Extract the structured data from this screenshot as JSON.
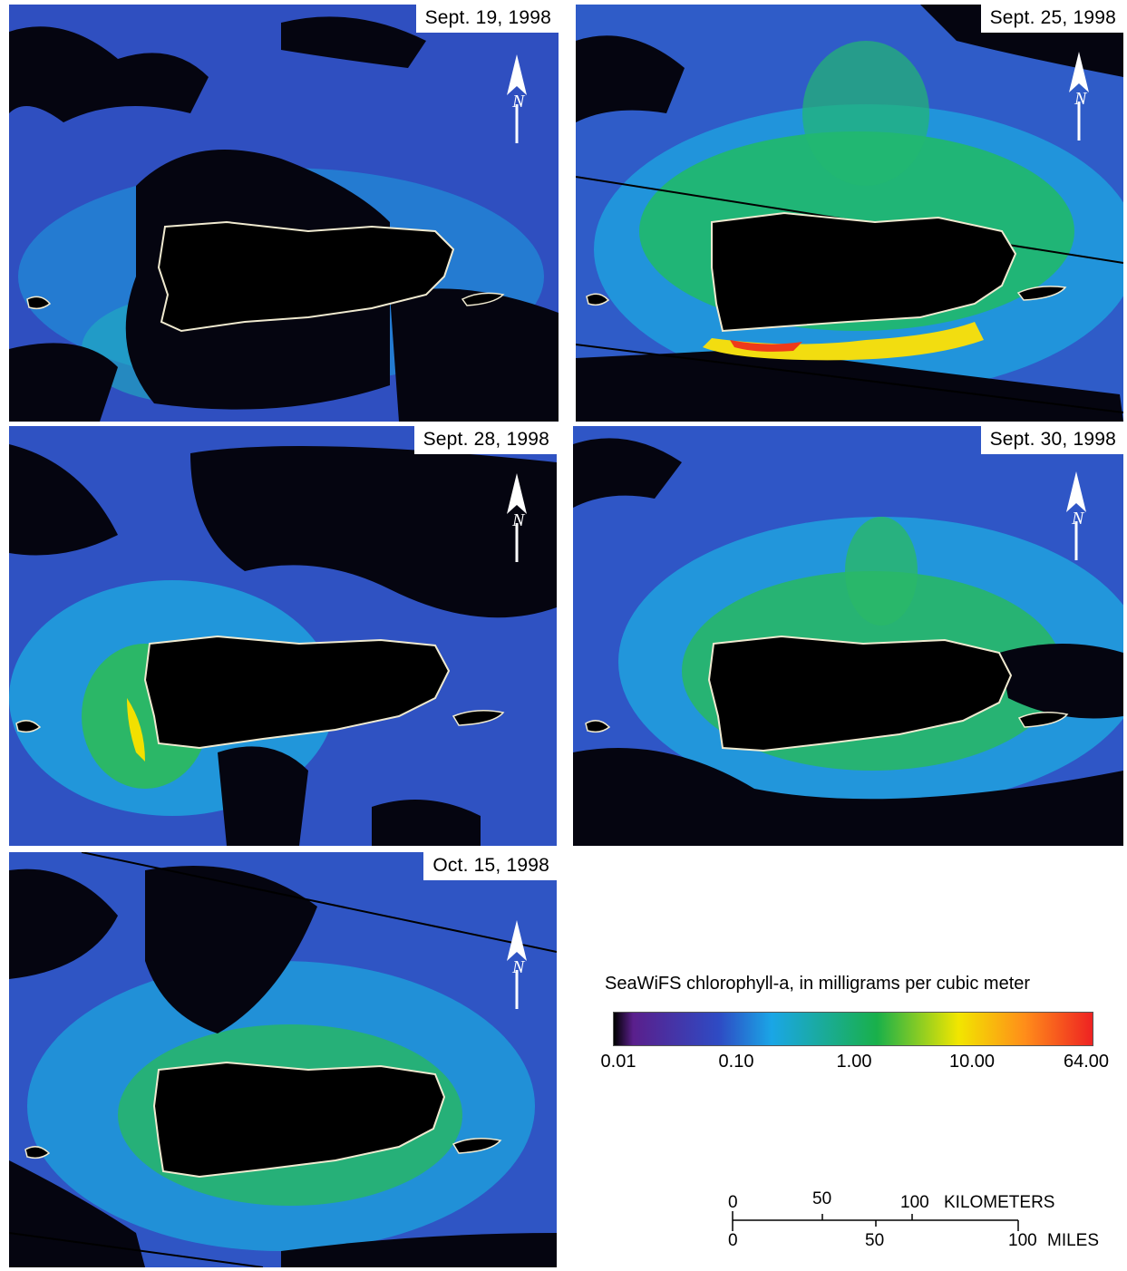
{
  "panels": [
    {
      "date": "Sept. 19, 1998"
    },
    {
      "date": "Sept. 25, 1998"
    },
    {
      "date": "Sept. 28, 1998"
    },
    {
      "date": "Sept. 30, 1998"
    },
    {
      "date": "Oct. 15, 1998"
    }
  ],
  "north_label": "N",
  "legend": {
    "title": "SeaWiFS chlorophyll-a, in milligrams per cubic meter",
    "ticks": [
      "0.01",
      "0.10",
      "1.00",
      "10.00",
      "64.00"
    ],
    "colors": [
      "#000000",
      "#5a1f8c",
      "#2e4bc4",
      "#1aa6e6",
      "#19b04a",
      "#f2e600",
      "#ff8c1a",
      "#ee2222"
    ]
  },
  "scale_bar": {
    "km_labels": [
      "0",
      "50",
      "100"
    ],
    "km_unit": "KILOMETERS",
    "mi_labels": [
      "0",
      "50",
      "100"
    ],
    "mi_unit": "MILES"
  }
}
